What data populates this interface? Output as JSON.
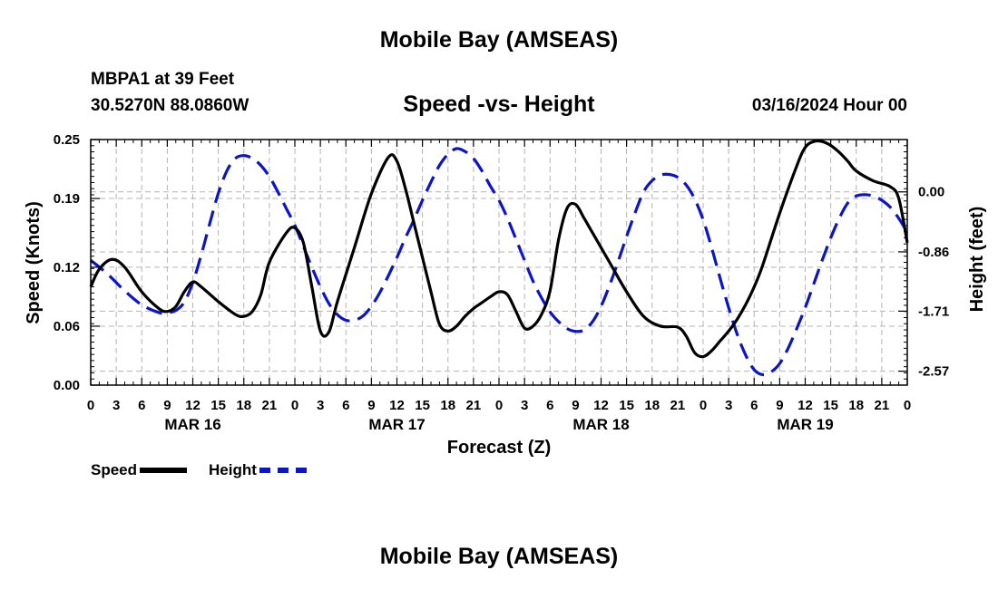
{
  "page": {
    "title": "Mobile Bay (AMSEAS)",
    "footer_title": "Mobile Bay (AMSEAS)",
    "station": "MBPA1 at 39 Feet",
    "coords": "30.5270N  88.0860W",
    "subtitle": "Speed -vs- Height",
    "datetime": "03/16/2024 Hour 00"
  },
  "colors": {
    "speed": "#000000",
    "height": "#0a14c8",
    "grid": "#b4b4b4"
  },
  "chart_data": {
    "type": "line",
    "title": "Speed -vs- Height",
    "xlabel": "Forecast (Z)",
    "ylabel": "Speed (Knots)",
    "y2label": "Height (feet)",
    "xlim": [
      0,
      96
    ],
    "ylim": [
      0,
      0.25
    ],
    "y2lim": [
      -2.77,
      0.75
    ],
    "yticks": [
      0.0,
      0.06,
      0.12,
      0.19,
      0.25
    ],
    "ytick_labels": [
      "0.00",
      "0.06",
      "0.12",
      "0.19",
      "0.25"
    ],
    "y2ticks": [
      0.0,
      -0.86,
      -1.71,
      -2.57
    ],
    "y2tick_labels": [
      "0.00",
      "-0.86",
      "-1.71",
      "-2.57"
    ],
    "xtick_hours": [
      0,
      3,
      6,
      9,
      12,
      15,
      18,
      21,
      24,
      27,
      30,
      33,
      36,
      39,
      42,
      45,
      48,
      51,
      54,
      57,
      60,
      63,
      66,
      69,
      72,
      75,
      78,
      81,
      84,
      87,
      90,
      93,
      96
    ],
    "xtick_labels": [
      "0",
      "3",
      "6",
      "9",
      "12",
      "15",
      "18",
      "21",
      "0",
      "3",
      "6",
      "9",
      "12",
      "15",
      "18",
      "21",
      "0",
      "3",
      "6",
      "9",
      "12",
      "15",
      "18",
      "21",
      "0",
      "3",
      "6",
      "9",
      "12",
      "15",
      "18",
      "21",
      "0"
    ],
    "date_labels": [
      {
        "hour": 12,
        "label": "MAR 16"
      },
      {
        "hour": 36,
        "label": "MAR 17"
      },
      {
        "hour": 60,
        "label": "MAR 18"
      },
      {
        "hour": 84,
        "label": "MAR 19"
      }
    ],
    "series": [
      {
        "name": "Speed",
        "axis": "left",
        "style": "solid",
        "x": [
          0,
          1,
          2.5,
          4,
          6,
          8,
          9,
          10,
          11,
          12,
          13,
          15,
          17,
          18,
          19,
          20,
          21,
          23,
          24,
          25,
          26,
          27,
          28,
          29,
          31,
          33,
          35,
          36,
          37,
          38,
          39,
          40,
          41,
          42,
          43,
          44,
          45,
          46,
          47,
          48,
          49,
          50,
          51,
          52,
          53,
          54,
          55,
          56,
          57,
          58,
          59,
          61,
          63,
          65,
          67,
          69,
          70,
          71,
          72,
          73,
          74,
          75,
          76,
          77,
          78,
          79,
          81,
          83,
          84,
          85,
          86,
          87,
          88,
          89,
          90,
          92,
          94,
          95,
          96
        ],
        "values": [
          0.1,
          0.118,
          0.128,
          0.12,
          0.095,
          0.078,
          0.075,
          0.08,
          0.095,
          0.105,
          0.1,
          0.085,
          0.072,
          0.07,
          0.075,
          0.092,
          0.125,
          0.155,
          0.16,
          0.145,
          0.1,
          0.055,
          0.054,
          0.085,
          0.14,
          0.195,
          0.232,
          0.228,
          0.2,
          0.165,
          0.13,
          0.095,
          0.062,
          0.055,
          0.06,
          0.07,
          0.078,
          0.084,
          0.09,
          0.095,
          0.092,
          0.075,
          0.058,
          0.06,
          0.072,
          0.096,
          0.148,
          0.18,
          0.184,
          0.17,
          0.155,
          0.125,
          0.095,
          0.07,
          0.06,
          0.059,
          0.05,
          0.033,
          0.029,
          0.035,
          0.045,
          0.055,
          0.067,
          0.082,
          0.1,
          0.122,
          0.175,
          0.223,
          0.242,
          0.248,
          0.248,
          0.244,
          0.237,
          0.228,
          0.218,
          0.208,
          0.202,
          0.19,
          0.145
        ]
      },
      {
        "name": "Height",
        "axis": "right",
        "style": "dashed",
        "x": [
          0,
          2,
          4,
          6,
          8,
          9,
          10,
          11,
          12,
          13,
          14,
          15,
          16,
          17,
          18,
          19,
          20,
          21,
          22,
          23,
          24,
          25,
          26,
          27,
          28,
          29,
          30,
          31,
          32,
          33,
          34,
          35,
          36,
          37,
          38,
          39,
          40,
          41,
          42,
          43,
          44,
          45,
          46,
          47,
          48,
          49,
          50,
          51,
          52,
          53,
          54,
          55,
          56,
          57,
          58,
          59,
          60,
          61,
          62,
          63,
          64,
          65,
          66,
          67,
          68,
          69,
          70,
          71,
          72,
          73,
          74,
          75,
          76,
          77,
          78,
          79,
          80,
          81,
          82,
          83,
          84,
          85,
          86,
          87,
          88,
          89,
          90,
          91,
          92,
          93,
          94,
          95,
          96
        ],
        "values": [
          -0.98,
          -1.18,
          -1.42,
          -1.62,
          -1.73,
          -1.73,
          -1.7,
          -1.58,
          -1.3,
          -0.9,
          -0.45,
          -0.02,
          0.3,
          0.48,
          0.52,
          0.48,
          0.38,
          0.22,
          0.0,
          -0.24,
          -0.48,
          -0.78,
          -1.08,
          -1.36,
          -1.6,
          -1.76,
          -1.84,
          -1.84,
          -1.78,
          -1.64,
          -1.44,
          -1.2,
          -0.94,
          -0.66,
          -0.4,
          -0.12,
          0.14,
          0.38,
          0.54,
          0.62,
          0.58,
          0.48,
          0.3,
          0.08,
          -0.12,
          -0.38,
          -0.68,
          -0.98,
          -1.28,
          -1.52,
          -1.72,
          -1.86,
          -1.96,
          -2.0,
          -1.98,
          -1.86,
          -1.64,
          -1.34,
          -1.0,
          -0.64,
          -0.3,
          0.0,
          0.16,
          0.24,
          0.25,
          0.21,
          0.1,
          -0.1,
          -0.4,
          -0.8,
          -1.24,
          -1.66,
          -2.04,
          -2.34,
          -2.55,
          -2.62,
          -2.58,
          -2.46,
          -2.24,
          -1.96,
          -1.66,
          -1.32,
          -0.98,
          -0.66,
          -0.38,
          -0.16,
          -0.06,
          -0.04,
          -0.06,
          -0.12,
          -0.22,
          -0.38,
          -0.58
        ]
      }
    ],
    "legend": [
      "Speed",
      "Height"
    ],
    "legend_position": "bottom-left",
    "grid": true
  }
}
